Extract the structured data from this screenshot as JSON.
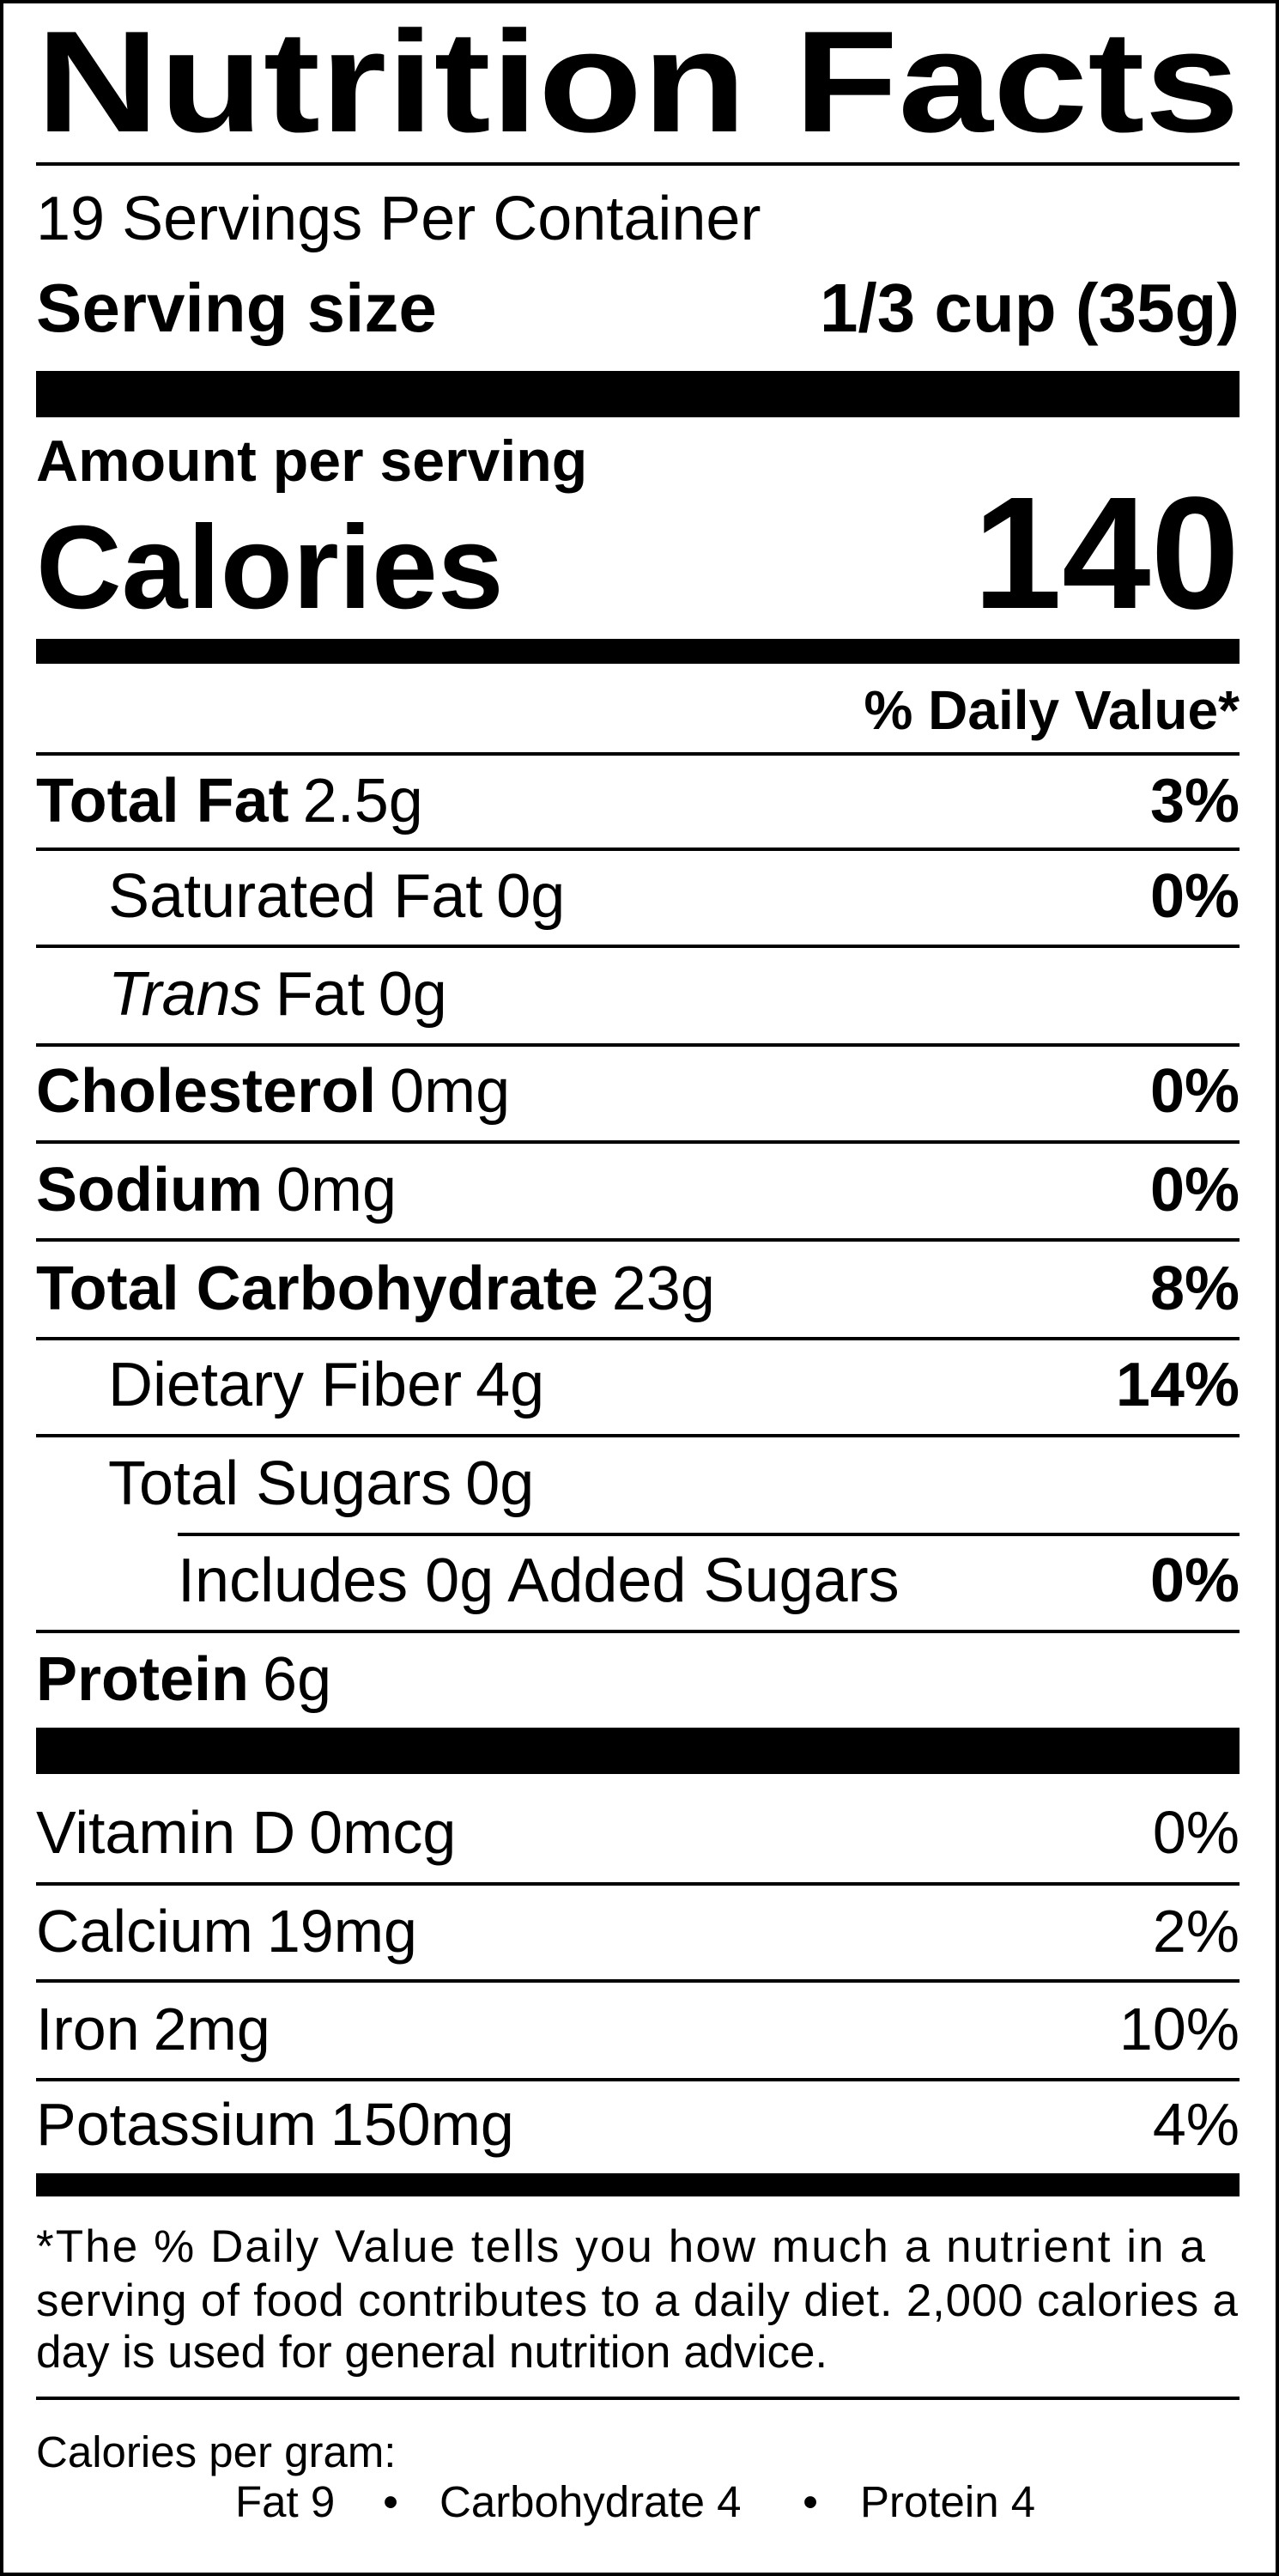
{
  "header": {
    "title": "Nutrition Facts",
    "servings_per_container": "19 Servings Per Container",
    "serving_size_label": "Serving size",
    "serving_size": "1/3 cup (35g)"
  },
  "calories": {
    "amount_per_serving": "Amount per serving",
    "label": "Calories",
    "value": "140"
  },
  "daily_value_header": "% Daily Value*",
  "nutrients": [
    {
      "name": "Total Fat",
      "amount": "2.5g",
      "daily_value": "3%"
    },
    {
      "name": "Saturated Fat",
      "amount": "0g",
      "daily_value": "0%"
    },
    {
      "name_italic": "Trans",
      "name": "Fat",
      "amount": "0g"
    },
    {
      "name": "Cholesterol",
      "amount": "0mg",
      "daily_value": "0%"
    },
    {
      "name": "Sodium",
      "amount": "0mg",
      "daily_value": "0%"
    },
    {
      "name": "Total Carbohydrate",
      "amount": "23g",
      "daily_value": "8%"
    },
    {
      "name": "Dietary Fiber",
      "amount": "4g",
      "daily_value": "14%"
    },
    {
      "name": "Total Sugars",
      "amount": "0g"
    },
    {
      "name": "Includes 0g Added Sugars",
      "daily_value": "0%"
    },
    {
      "name": "Protein",
      "amount": "6g"
    }
  ],
  "vitamins_minerals": [
    {
      "name": "Vitamin D",
      "amount": "0mcg",
      "daily_value": "0%"
    },
    {
      "name": "Calcium",
      "amount": "19mg",
      "daily_value": "2%"
    },
    {
      "name": "Iron",
      "amount": "2mg",
      "daily_value": "10%"
    },
    {
      "name": "Potassium",
      "amount": "150mg",
      "daily_value": "4%"
    }
  ],
  "footnote": [
    "*The % Daily Value tells you how much a nutrient in a",
    "serving of food contributes to a daily diet. 2,000 calories a",
    "day is used for general nutrition advice."
  ],
  "calories_per_gram": {
    "label": "Calories per gram:",
    "items": [
      "Fat 9",
      "Carbohydrate 4",
      "Protein 4"
    ],
    "separator": "•"
  }
}
